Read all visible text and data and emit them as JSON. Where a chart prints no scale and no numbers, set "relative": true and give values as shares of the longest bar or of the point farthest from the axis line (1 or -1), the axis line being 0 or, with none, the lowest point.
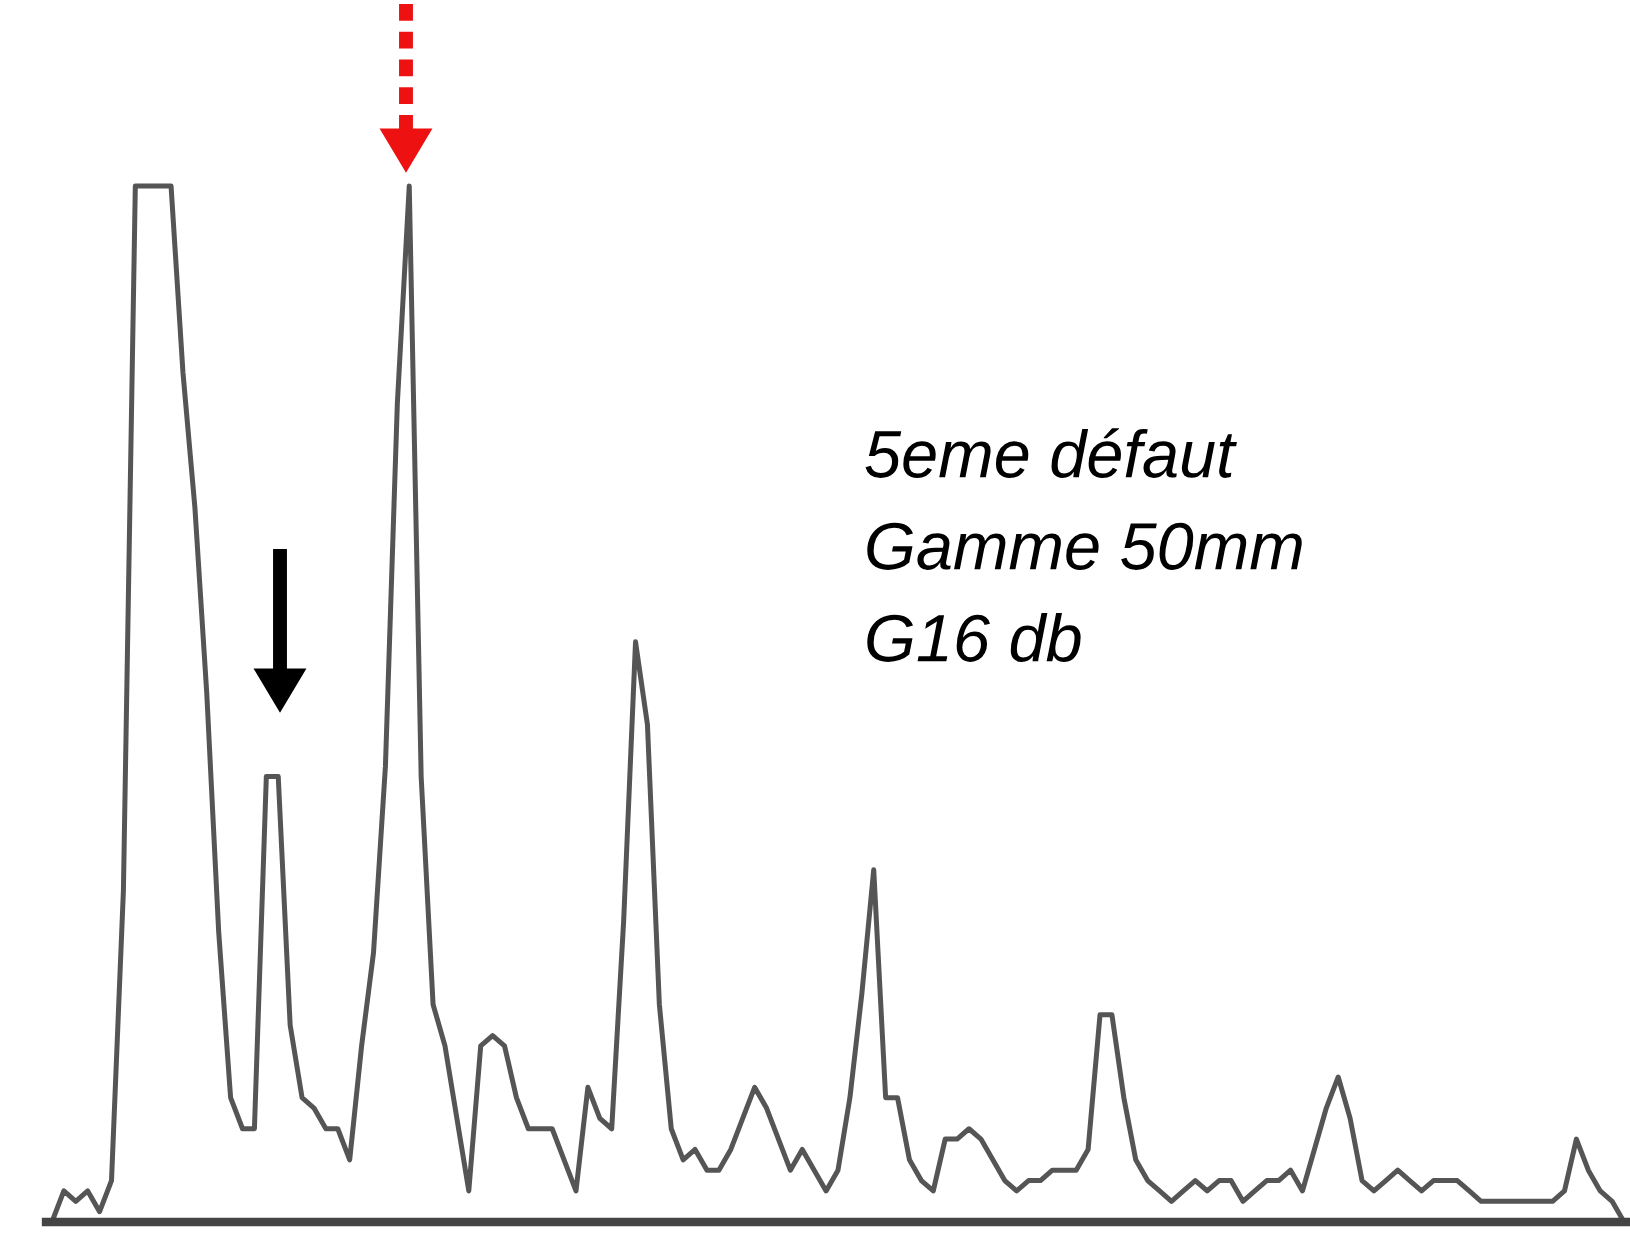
{
  "chart_data": {
    "type": "line",
    "relative": true,
    "categories": [
      null,
      null,
      null,
      null,
      null,
      null,
      null,
      null,
      null,
      null,
      null,
      null,
      null,
      null,
      null,
      null,
      null,
      null,
      null,
      null,
      null,
      null,
      null,
      null,
      null,
      null,
      null,
      null,
      null,
      null,
      null,
      null,
      null,
      null,
      null,
      null,
      null,
      null,
      null,
      null,
      null,
      null,
      null,
      null,
      null,
      null,
      null,
      null,
      null,
      null,
      null,
      null,
      null,
      null,
      null,
      null,
      null,
      null,
      null,
      null,
      null,
      null,
      null,
      null,
      null,
      null,
      null,
      null,
      null,
      null,
      null,
      null,
      null,
      null,
      null,
      null,
      null,
      null,
      null,
      null,
      null,
      null,
      null,
      null,
      null,
      null,
      null,
      null,
      null,
      null,
      null,
      null,
      null,
      null,
      null,
      null,
      null,
      null,
      null,
      null,
      null,
      null,
      null,
      null,
      null,
      null,
      null,
      null,
      null,
      null,
      null,
      null,
      null,
      null,
      null,
      null,
      null,
      null,
      null,
      null,
      null,
      null,
      null,
      null,
      null,
      null,
      null,
      null,
      null,
      null,
      null,
      null,
      null
    ],
    "series": [
      {
        "color": "#555555",
        "values": [
          0.0,
          0.03,
          0.02,
          0.03,
          0.01,
          0.04,
          0.32,
          1.0,
          1.0,
          1.0,
          1.0,
          0.82,
          0.69,
          0.51,
          0.28,
          0.12,
          0.09,
          0.09,
          0.43,
          0.43,
          0.19,
          0.12,
          0.11,
          0.09,
          0.09,
          0.06,
          0.17,
          0.26,
          0.44,
          0.79,
          1.0,
          0.43,
          0.21,
          0.17,
          0.1,
          0.03,
          0.17,
          0.18,
          0.17,
          0.12,
          0.09,
          0.09,
          0.09,
          0.06,
          0.03,
          0.13,
          0.1,
          0.09,
          0.29,
          0.56,
          0.48,
          0.21,
          0.09,
          0.06,
          0.07,
          0.05,
          0.05,
          0.07,
          0.1,
          0.13,
          0.11,
          0.08,
          0.05,
          0.07,
          0.05,
          0.03,
          0.05,
          0.12,
          0.22,
          0.34,
          0.12,
          0.12,
          0.06,
          0.04,
          0.03,
          0.08,
          0.08,
          0.09,
          0.08,
          0.06,
          0.04,
          0.03,
          0.04,
          0.04,
          0.05,
          0.05,
          0.05,
          0.07,
          0.2,
          0.2,
          0.12,
          0.06,
          0.04,
          0.03,
          0.02,
          0.03,
          0.04,
          0.03,
          0.04,
          0.04,
          0.02,
          0.03,
          0.04,
          0.04,
          0.05,
          0.03,
          0.07,
          0.11,
          0.14,
          0.1,
          0.04,
          0.03,
          0.04,
          0.05,
          0.04,
          0.03,
          0.04,
          0.04,
          0.04,
          0.03,
          0.02,
          0.02,
          0.02,
          0.02,
          0.02,
          0.02,
          0.02,
          0.03,
          0.08,
          0.05,
          0.03,
          0.02,
          0.0
        ]
      }
    ],
    "annotations": [
      "5eme défaut",
      "Gamme 50mm",
      "G16 db"
    ]
  }
}
